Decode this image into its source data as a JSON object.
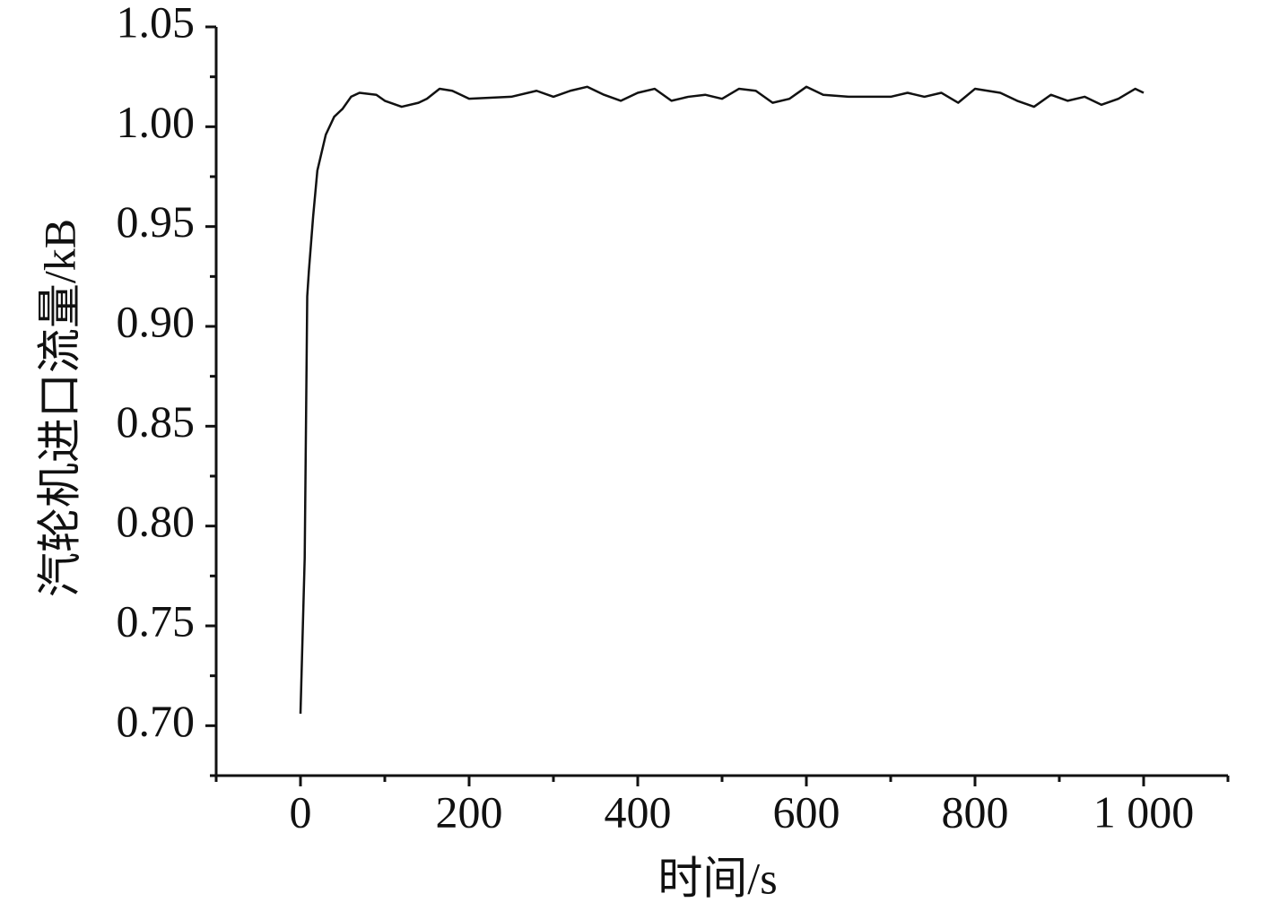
{
  "chart_data": {
    "type": "line",
    "x_label": "时间/s",
    "y_label": "汽轮机进口流量/kB",
    "xlim": [
      -100,
      1100
    ],
    "xticks": [
      0,
      200,
      400,
      600,
      800,
      {
        "value": 1000,
        "label": "1 000"
      }
    ],
    "xminorticks": [
      -100,
      100,
      300,
      500,
      700,
      900,
      1100
    ],
    "ylim": [
      0.675,
      1.05
    ],
    "yticks": [
      1.05,
      {
        "value": 1,
        "label": "1.00"
      },
      0.95,
      {
        "value": 0.9,
        "label": "0.90"
      },
      0.85,
      {
        "value": 0.8,
        "label": "0.80"
      },
      0.75,
      {
        "value": 0.7,
        "label": "0.70"
      }
    ],
    "yminorticks": [
      0.675,
      0.725,
      0.775,
      0.825,
      0.875,
      0.925,
      0.975,
      1.025
    ],
    "series": [
      {
        "color": "#111111",
        "x": [
          0,
          5,
          8,
          10,
          15,
          20,
          30,
          40,
          50,
          60,
          70,
          90,
          100,
          120,
          140,
          150,
          165,
          180,
          200,
          250,
          280,
          300,
          320,
          340,
          360,
          380,
          400,
          420,
          440,
          460,
          480,
          500,
          520,
          540,
          560,
          580,
          600,
          620,
          650,
          700,
          720,
          740,
          760,
          780,
          800,
          830,
          850,
          870,
          890,
          910,
          930,
          950,
          970,
          990,
          1000
        ],
        "values": [
          0.706,
          0.784,
          0.915,
          0.928,
          0.955,
          0.978,
          0.996,
          1.005,
          1.009,
          1.015,
          1.017,
          1.016,
          1.013,
          1.01,
          1.012,
          1.014,
          1.019,
          1.018,
          1.014,
          1.015,
          1.018,
          1.015,
          1.018,
          1.02,
          1.016,
          1.013,
          1.017,
          1.019,
          1.013,
          1.015,
          1.016,
          1.014,
          1.019,
          1.018,
          1.012,
          1.014,
          1.02,
          1.016,
          1.015,
          1.015,
          1.017,
          1.015,
          1.017,
          1.012,
          1.019,
          1.017,
          1.013,
          1.01,
          1.016,
          1.013,
          1.015,
          1.011,
          1.014,
          1.019,
          1.017
        ]
      }
    ]
  }
}
